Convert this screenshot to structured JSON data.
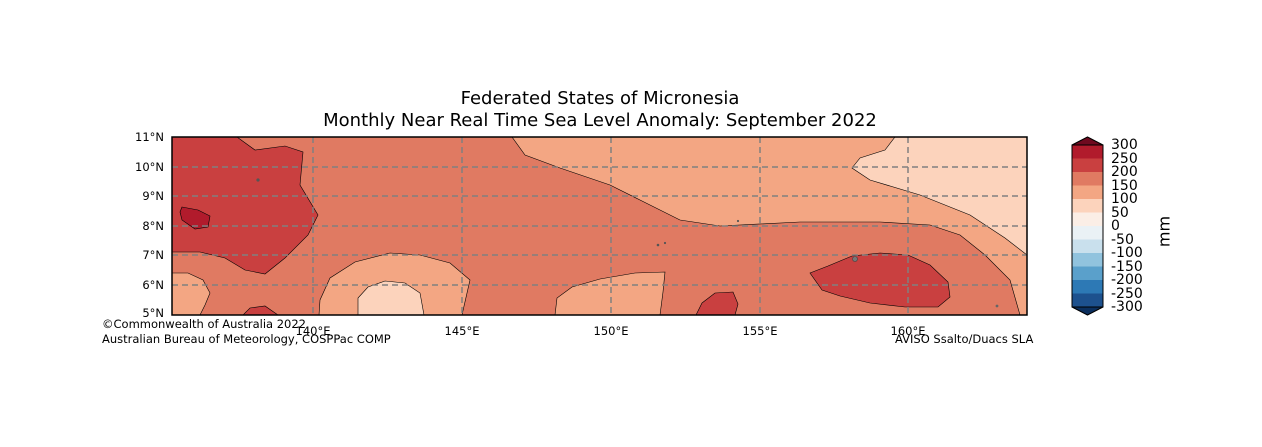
{
  "title_line1": "Federated States of Micronesia",
  "title_line2": "Monthly Near Real Time Sea Level Anomaly: September 2022",
  "credits": {
    "copyright": "©Commonwealth of Australia 2022",
    "agency": "Australian Bureau of Meteorology, COSPPac COMP",
    "source": "AVISO Ssalto/Duacs SLA"
  },
  "map": {
    "lon_range": [
      135.3,
      164.0
    ],
    "lat_range": [
      5,
      11
    ],
    "lat_ticks": [
      "5°N",
      "6°N",
      "7°N",
      "8°N",
      "9°N",
      "10°N",
      "11°N"
    ],
    "lon_ticks": [
      "140°E",
      "145°E",
      "150°E",
      "155°E",
      "160°E"
    ],
    "gridlines": "dashed"
  },
  "colorbar": {
    "unit": "mm",
    "labels": [
      "300",
      "250",
      "200",
      "150",
      "100",
      "50",
      "0",
      "-50",
      "-100",
      "-150",
      "-200",
      "-250",
      "-300"
    ],
    "colors": [
      "#6f0a1f",
      "#b11b2c",
      "#c94040",
      "#e07a62",
      "#f3a683",
      "#fcd3bc",
      "#fbeee6",
      "#eaf1f5",
      "#c9e0ed",
      "#91c3de",
      "#5aa0cb",
      "#2d79b5",
      "#1d518e",
      "#0b2f5e"
    ]
  }
}
